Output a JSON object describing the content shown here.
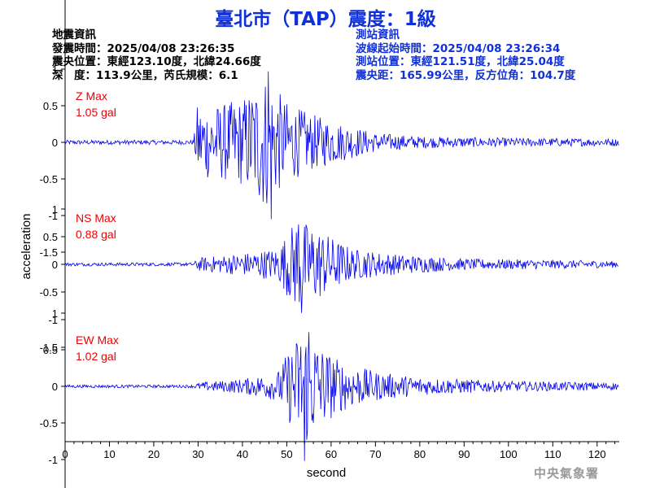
{
  "title": "臺北市（TAP）震度：1級",
  "info": {
    "left": {
      "heading": "地震資訊",
      "time": "發震時間：2025/04/08 23:26:35",
      "epicenter": "震央位置：東經123.10度，北緯24.66度",
      "depth_mag": "深　度：113.9公里，芮氏規模：6.1"
    },
    "right": {
      "heading": "測站資訊",
      "onset": "波線起始時間：2025/04/08 23:26:34",
      "station": "測站位置：東經121.51度，北緯25.04度",
      "distance": "震央距：165.99公里，反方位角：104.7度"
    }
  },
  "credit": "中央氣象署",
  "colors": {
    "title": "#1030d8",
    "trace": "#0000ee",
    "max_label": "#ee0000",
    "axis": "#000000"
  },
  "chart_data": {
    "type": "line",
    "xlabel": "second",
    "ylabel": "acceleration",
    "xlim": [
      0,
      125
    ],
    "x_ticks": [
      0,
      10,
      20,
      30,
      40,
      50,
      60,
      70,
      80,
      90,
      100,
      110,
      120
    ],
    "y_ticks": [
      {
        "v": 1.5,
        "label": ""
      },
      {
        "v": 1,
        "label": "1"
      },
      {
        "v": 0.5,
        "label": "0.5"
      },
      {
        "v": 0,
        "label": "0"
      },
      {
        "v": -0.5,
        "label": "-0.5"
      },
      {
        "v": -1,
        "label": "-1"
      },
      {
        "v": -1.5,
        "label": "-1.5"
      }
    ],
    "grid": false,
    "sample_interval_s": 0.5,
    "series": [
      {
        "name": "Z Max",
        "max_label": "1.05 gal",
        "ylim": [
          -1.5,
          1.5
        ],
        "peak_max": 0.97,
        "peak_min": -1.05,
        "onset_s": 29.5,
        "envelope": [
          [
            0,
            0.03
          ],
          [
            29,
            0.03
          ],
          [
            29.8,
            0.5
          ],
          [
            35,
            0.52
          ],
          [
            40,
            0.6
          ],
          [
            45,
            0.95
          ],
          [
            50,
            0.55
          ],
          [
            55,
            0.4
          ],
          [
            60,
            0.3
          ],
          [
            70,
            0.13
          ],
          [
            80,
            0.08
          ],
          [
            100,
            0.06
          ],
          [
            125,
            0.05
          ]
        ]
      },
      {
        "name": "NS Max",
        "max_label": "0.88 gal",
        "ylim": [
          -1.5,
          1.0
        ],
        "peak_max": 0.72,
        "peak_min": -0.88,
        "onset_s": 29.5,
        "envelope": [
          [
            0,
            0.03
          ],
          [
            29,
            0.03
          ],
          [
            30,
            0.12
          ],
          [
            40,
            0.2
          ],
          [
            48,
            0.3
          ],
          [
            52,
            0.82
          ],
          [
            56,
            0.72
          ],
          [
            60,
            0.5
          ],
          [
            65,
            0.28
          ],
          [
            75,
            0.18
          ],
          [
            90,
            0.1
          ],
          [
            110,
            0.08
          ],
          [
            125,
            0.06
          ]
        ]
      },
      {
        "name": "EW Max",
        "max_label": "1.02 gal",
        "ylim": [
          -1.5,
          1.0
        ],
        "peak_max": 0.74,
        "peak_min": -1.02,
        "onset_s": 29.5,
        "envelope": [
          [
            0,
            0.02
          ],
          [
            29,
            0.02
          ],
          [
            30,
            0.05
          ],
          [
            40,
            0.1
          ],
          [
            48,
            0.2
          ],
          [
            50,
            0.45
          ],
          [
            54,
            0.85
          ],
          [
            58,
            0.55
          ],
          [
            62,
            0.35
          ],
          [
            70,
            0.2
          ],
          [
            80,
            0.12
          ],
          [
            100,
            0.07
          ],
          [
            125,
            0.05
          ]
        ]
      }
    ]
  }
}
